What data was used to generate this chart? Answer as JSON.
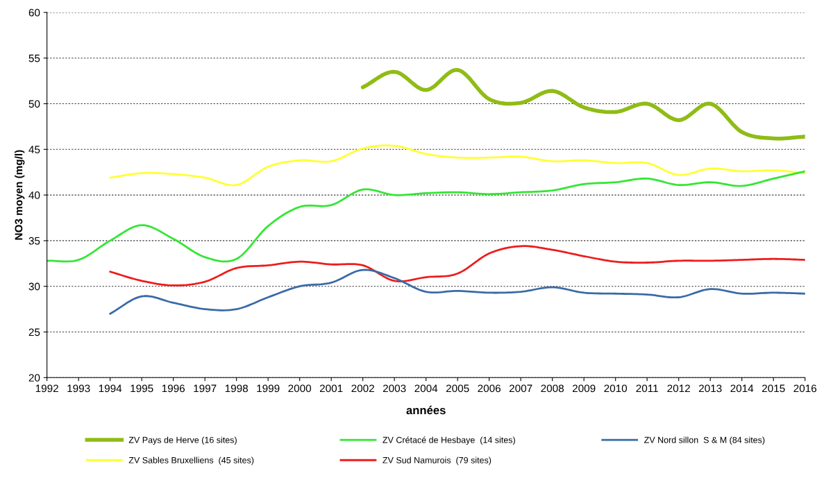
{
  "chart_data": {
    "type": "line",
    "xlabel": "années",
    "ylabel": "NO3 moyen (mg/l)",
    "xlim": [
      1992,
      2016
    ],
    "xticks": [
      1992,
      1993,
      1994,
      1995,
      1996,
      1997,
      1998,
      1999,
      2000,
      2001,
      2002,
      2003,
      2004,
      2005,
      2006,
      2007,
      2008,
      2009,
      2010,
      2011,
      2012,
      2013,
      2014,
      2015,
      2016
    ],
    "ylim": [
      20,
      60
    ],
    "yticks": [
      20,
      25,
      30,
      35,
      40,
      45,
      50,
      55,
      60
    ],
    "grid": "y",
    "legend": "bottom",
    "marker": "none",
    "line_style": "solid",
    "series": [
      {
        "name": "ZV Pays de Herve (16 sites)",
        "color": "#8fbc16",
        "x": [
          2002,
          2003,
          2004,
          2005,
          2006,
          2007,
          2008,
          2009,
          2010,
          2011,
          2012,
          2013,
          2014,
          2015,
          2016
        ],
        "values": [
          51.8,
          53.5,
          51.5,
          53.7,
          50.5,
          50.1,
          51.4,
          49.6,
          49.1,
          50.0,
          48.2,
          50.0,
          46.9,
          46.2,
          46.4
        ]
      },
      {
        "name": "ZV Sables Bruxelliens  (45 sites)",
        "color": "#ffff33",
        "x": [
          1994,
          1995,
          1996,
          1997,
          1998,
          1999,
          2000,
          2001,
          2002,
          2003,
          2004,
          2005,
          2006,
          2007,
          2008,
          2009,
          2010,
          2011,
          2012,
          2013,
          2014,
          2015,
          2016
        ],
        "values": [
          41.9,
          42.4,
          42.3,
          41.9,
          41.1,
          43.1,
          43.8,
          43.7,
          45.1,
          45.4,
          44.5,
          44.1,
          44.1,
          44.2,
          43.7,
          43.8,
          43.5,
          43.5,
          42.2,
          42.9,
          42.6,
          42.7,
          42.4
        ]
      },
      {
        "name": "ZV Crétacé de Hesbaye  (14 sites)",
        "color": "#33e633",
        "x": [
          1992,
          1993,
          1994,
          1995,
          1996,
          1997,
          1998,
          1999,
          2000,
          2001,
          2002,
          2003,
          2004,
          2005,
          2006,
          2007,
          2008,
          2009,
          2010,
          2011,
          2012,
          2013,
          2014,
          2015,
          2016
        ],
        "values": [
          32.8,
          32.9,
          35.0,
          36.7,
          35.2,
          33.2,
          33.0,
          36.6,
          38.7,
          38.9,
          40.6,
          40.0,
          40.2,
          40.3,
          40.1,
          40.3,
          40.5,
          41.2,
          41.4,
          41.8,
          41.1,
          41.4,
          41.0,
          41.8,
          42.6
        ]
      },
      {
        "name": "ZV Sud Namurois  (79 sites)",
        "color": "#ee1c1c",
        "x": [
          1994,
          1995,
          1996,
          1997,
          1998,
          1999,
          2000,
          2001,
          2002,
          2003,
          2004,
          2005,
          2006,
          2007,
          2008,
          2009,
          2010,
          2011,
          2012,
          2013,
          2014,
          2015,
          2016
        ],
        "values": [
          31.6,
          30.6,
          30.1,
          30.5,
          32.0,
          32.3,
          32.7,
          32.4,
          32.3,
          30.6,
          31.0,
          31.4,
          33.6,
          34.4,
          34.0,
          33.3,
          32.7,
          32.6,
          32.8,
          32.8,
          32.9,
          33.0,
          32.9
        ]
      },
      {
        "name": "ZV Nord sillon  S & M (84 sites)",
        "color": "#3a6aa8",
        "x": [
          1994,
          1995,
          1996,
          1997,
          1998,
          1999,
          2000,
          2001,
          2002,
          2003,
          2004,
          2005,
          2006,
          2007,
          2008,
          2009,
          2010,
          2011,
          2012,
          2013,
          2014,
          2015,
          2016
        ],
        "values": [
          27.0,
          28.9,
          28.2,
          27.5,
          27.5,
          28.8,
          30.0,
          30.4,
          31.8,
          30.9,
          29.4,
          29.5,
          29.3,
          29.4,
          29.9,
          29.3,
          29.2,
          29.1,
          28.8,
          29.7,
          29.2,
          29.3,
          29.2
        ]
      }
    ]
  }
}
